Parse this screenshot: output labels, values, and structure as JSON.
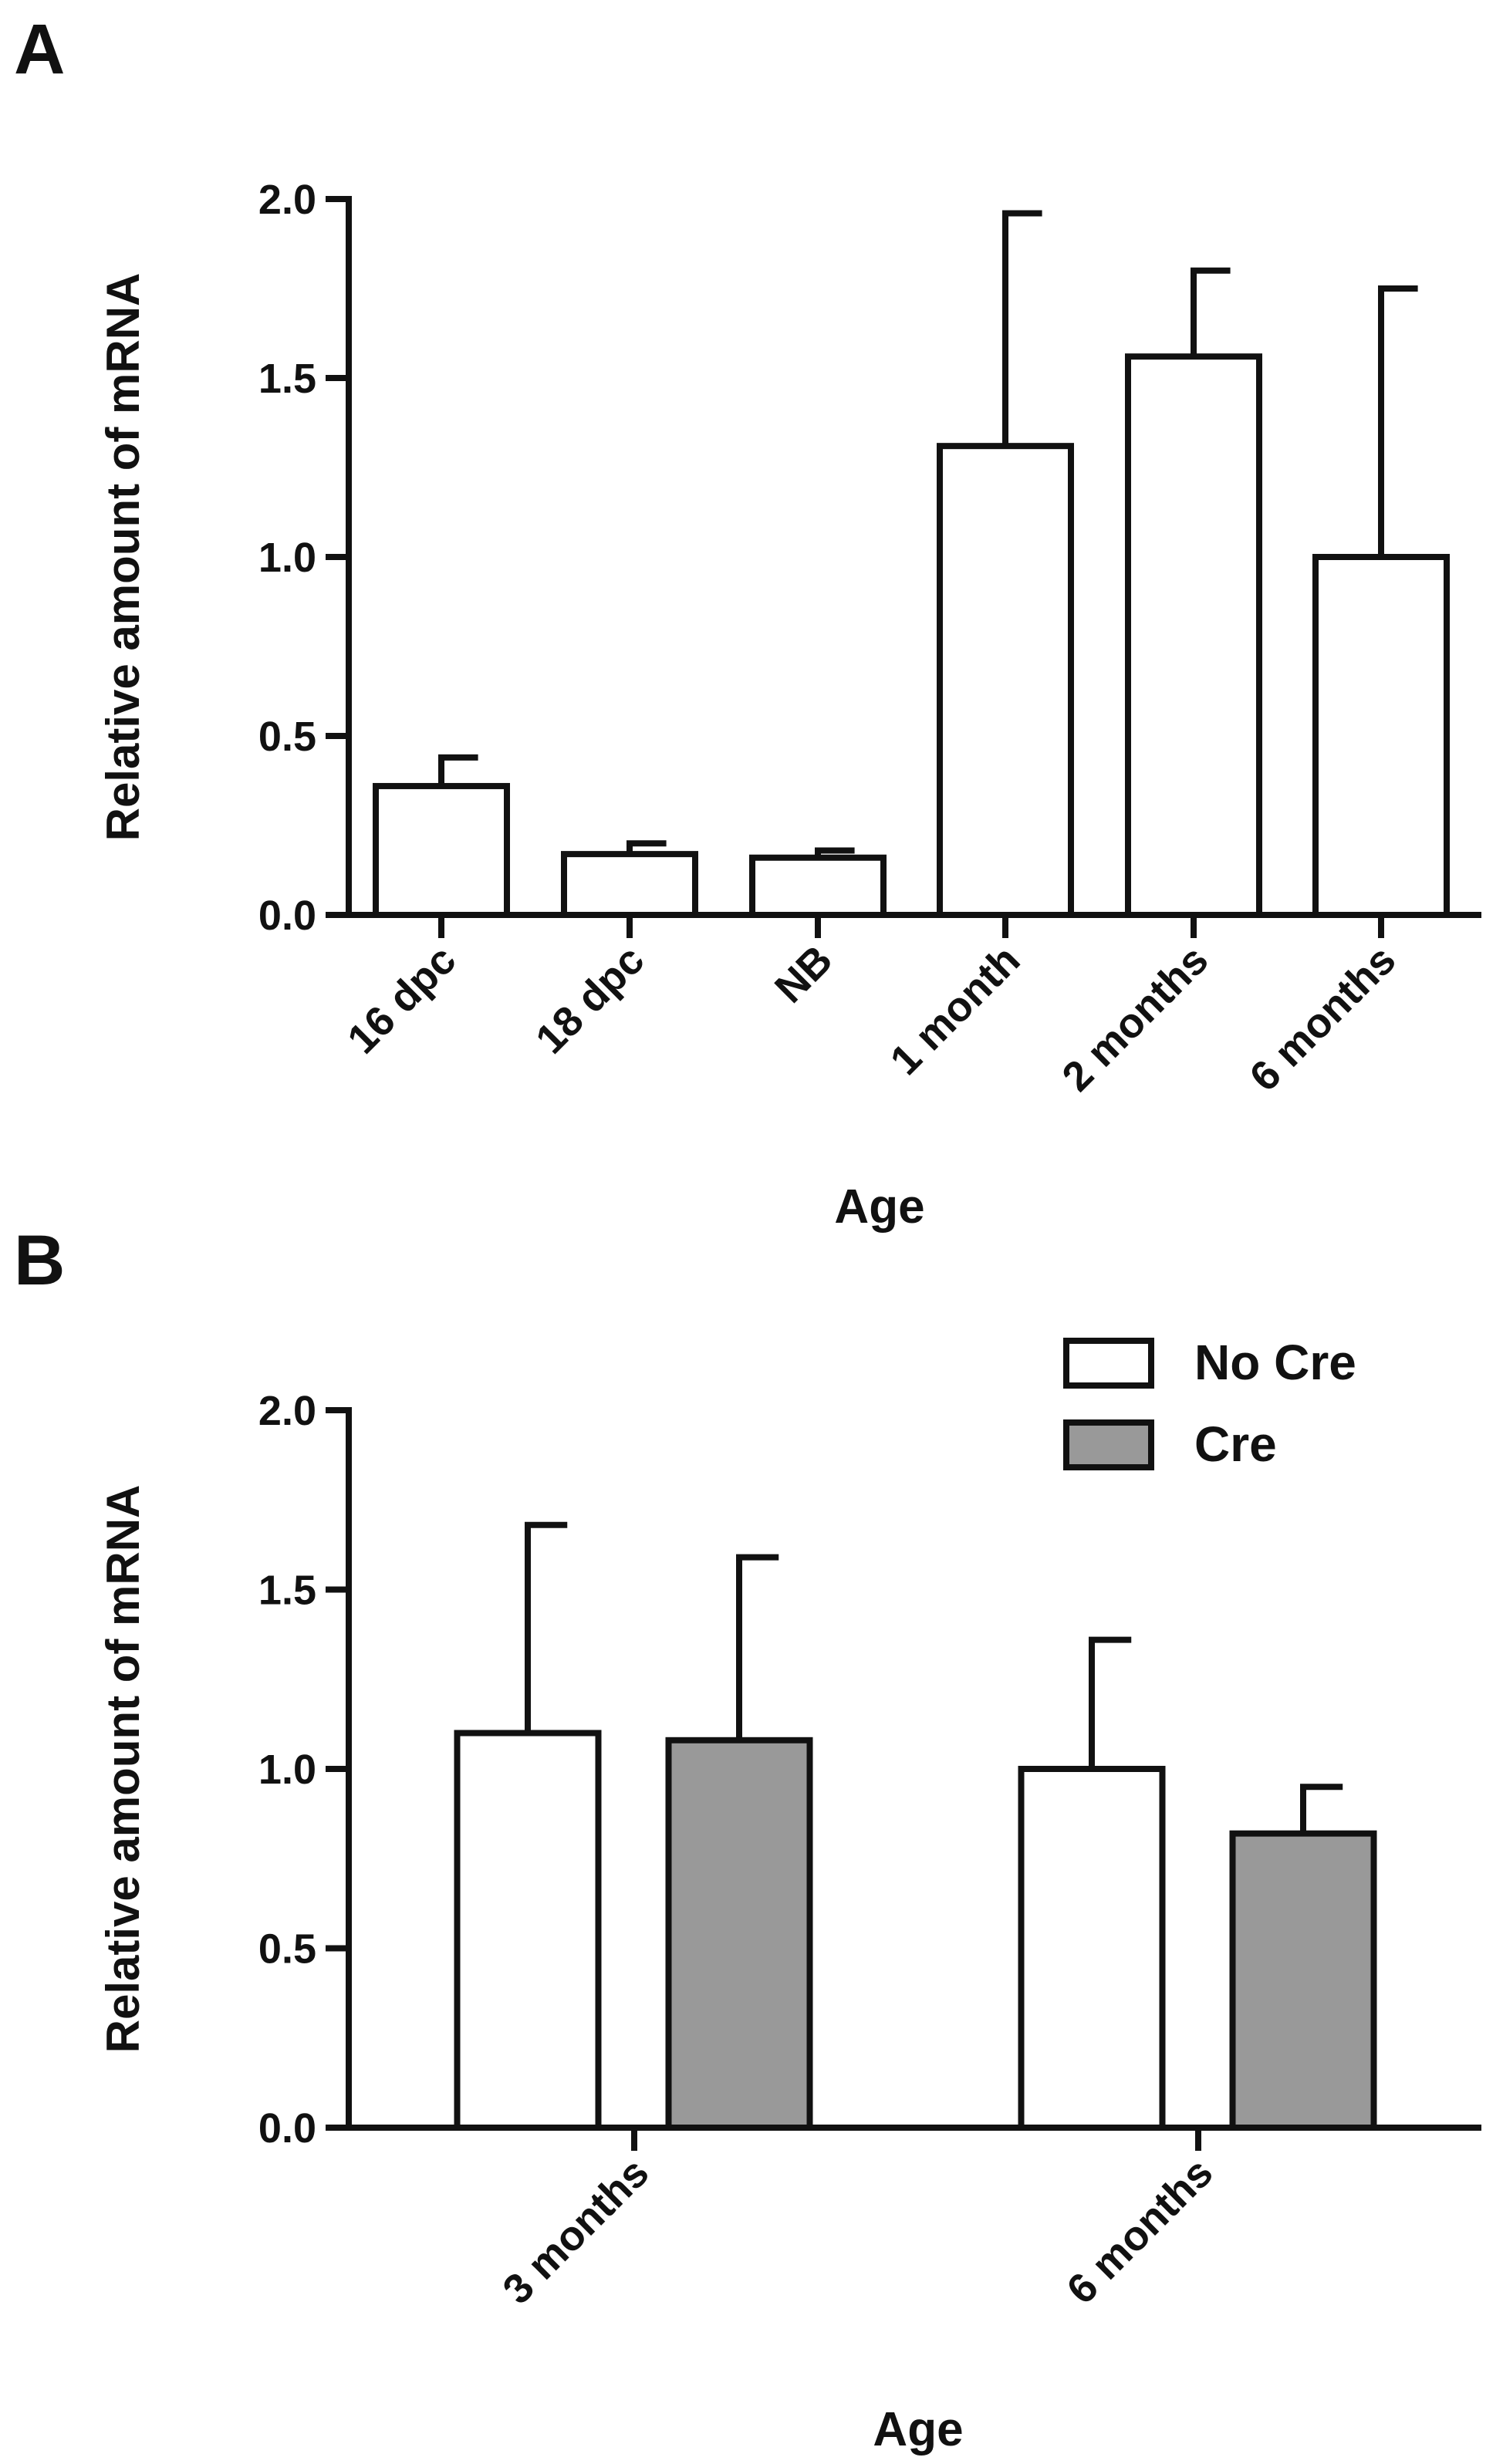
{
  "chart_data": [
    {
      "panel": "A",
      "type": "bar",
      "xlabel": "Age",
      "ylabel": "Relative amount of mRNA",
      "ylim": [
        0,
        2.0
      ],
      "yticks": [
        "0.0",
        "0.5",
        "1.0",
        "1.5",
        "2.0"
      ],
      "categories": [
        "16 dpc",
        "18 dpc",
        "NB",
        "1 month",
        "2 months",
        "6 months"
      ],
      "values": [
        0.36,
        0.17,
        0.16,
        1.31,
        1.56,
        1.0
      ],
      "error_upper": [
        0.44,
        0.2,
        0.18,
        1.96,
        1.8,
        1.75
      ],
      "fill": "#ffffff"
    },
    {
      "panel": "B",
      "type": "bar",
      "xlabel": "Age",
      "ylabel": "Relative amount of mRNA",
      "ylim": [
        0,
        2.0
      ],
      "yticks": [
        "0.0",
        "0.5",
        "1.0",
        "1.5",
        "2.0"
      ],
      "categories": [
        "3 months",
        "6 months"
      ],
      "legend_position": "top-right",
      "series": [
        {
          "name": "No Cre",
          "color": "#ffffff",
          "values": [
            1.1,
            1.0
          ],
          "error_upper": [
            1.68,
            1.36
          ]
        },
        {
          "name": "Cre",
          "color": "#999999",
          "values": [
            1.08,
            0.82
          ],
          "error_upper": [
            1.59,
            0.95
          ]
        }
      ]
    }
  ]
}
